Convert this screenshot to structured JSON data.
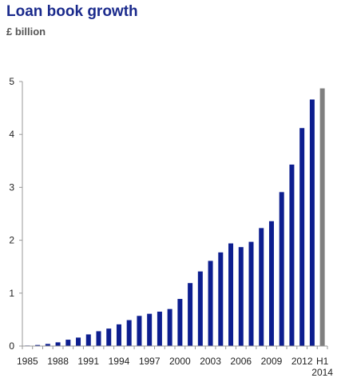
{
  "chart_data": {
    "type": "bar",
    "title": "Loan book growth",
    "subtitle": "£ billion",
    "xlabel": "",
    "ylabel": "",
    "ylim": [
      0,
      5
    ],
    "yticks": [
      0,
      1,
      2,
      3,
      4,
      5
    ],
    "grid": false,
    "legend": "none",
    "colors": {
      "bar": "#0d1e8f",
      "highlight": "#7f7f7f",
      "axis": "#999999"
    },
    "categories": [
      "1985",
      "1986",
      "1987",
      "1988",
      "1989",
      "1990",
      "1991",
      "1992",
      "1993",
      "1994",
      "1995",
      "1996",
      "1997",
      "1998",
      "1999",
      "2000",
      "2001",
      "2002",
      "2003",
      "2004",
      "2005",
      "2006",
      "2007",
      "2008",
      "2009",
      "2010",
      "2011",
      "2012",
      "2013",
      "H1 2014"
    ],
    "values": [
      0.01,
      0.02,
      0.04,
      0.07,
      0.12,
      0.16,
      0.22,
      0.28,
      0.33,
      0.41,
      0.49,
      0.57,
      0.61,
      0.65,
      0.7,
      0.89,
      1.19,
      1.41,
      1.61,
      1.77,
      1.94,
      1.87,
      1.97,
      2.23,
      2.36,
      2.91,
      3.43,
      4.12,
      4.66,
      4.87
    ],
    "highlight_category": "H1 2014",
    "xtick_labels": [
      {
        "category": "1985",
        "lines": [
          "1985"
        ]
      },
      {
        "category": "1988",
        "lines": [
          "1988"
        ]
      },
      {
        "category": "1991",
        "lines": [
          "1991"
        ]
      },
      {
        "category": "1994",
        "lines": [
          "1994"
        ]
      },
      {
        "category": "1997",
        "lines": [
          "1997"
        ]
      },
      {
        "category": "2000",
        "lines": [
          "2000"
        ]
      },
      {
        "category": "2003",
        "lines": [
          "2003"
        ]
      },
      {
        "category": "2006",
        "lines": [
          "2006"
        ]
      },
      {
        "category": "2009",
        "lines": [
          "2009"
        ]
      },
      {
        "category": "2012",
        "lines": [
          "2012"
        ]
      },
      {
        "category": "H1 2014",
        "lines": [
          "H1",
          "2014"
        ]
      }
    ]
  }
}
